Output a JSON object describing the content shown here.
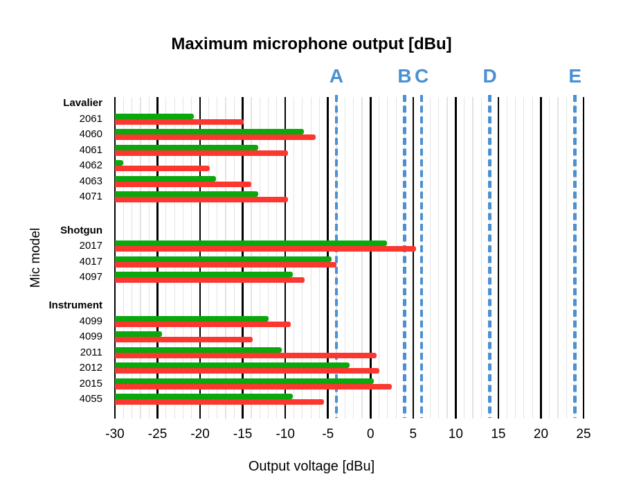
{
  "chart_data": {
    "type": "bar",
    "orientation": "horizontal",
    "title": "Maximum microphone output [dBu]",
    "xlabel": "Output voltage [dBu]",
    "ylabel": "Mic model",
    "xlim": [
      -30,
      25
    ],
    "x_ticks": [
      -30,
      -25,
      -20,
      -15,
      -10,
      -5,
      0,
      5,
      10,
      15,
      20,
      25
    ],
    "minor_grid_step": 1,
    "major_grid_step": 5,
    "grid": true,
    "legend": false,
    "background_color": "#ffffff",
    "series": [
      {
        "name": "green",
        "color": "#0aa80c"
      },
      {
        "name": "red",
        "color": "#fc3730"
      }
    ],
    "groups": [
      {
        "label": "Lavalier",
        "items": [
          {
            "label": "2061",
            "values": [
              -20.7,
              -14.9
            ]
          },
          {
            "label": "4060",
            "values": [
              -7.8,
              -6.4
            ]
          },
          {
            "label": "4061",
            "values": [
              -13.2,
              -9.7
            ]
          },
          {
            "label": "4062",
            "values": [
              -29.0,
              -18.9
            ]
          },
          {
            "label": "4063",
            "values": [
              -18.1,
              -14.0
            ]
          },
          {
            "label": "4071",
            "values": [
              -13.2,
              -9.7
            ]
          }
        ]
      },
      {
        "label": "Shotgun",
        "items": [
          {
            "label": "2017",
            "values": [
              1.9,
              5.3
            ]
          },
          {
            "label": "4017",
            "values": [
              -4.6,
              -4.0
            ]
          },
          {
            "label": "4097",
            "values": [
              -9.1,
              -7.7
            ]
          }
        ]
      },
      {
        "label": "Instrument",
        "items": [
          {
            "label": "4099",
            "values": [
              -12.0,
              -9.4
            ]
          },
          {
            "label": "4099",
            "values": [
              -24.5,
              -13.8
            ]
          },
          {
            "label": "2011",
            "values": [
              -10.4,
              0.7
            ]
          },
          {
            "label": "2012",
            "values": [
              -2.5,
              1.0
            ]
          },
          {
            "label": "2015",
            "values": [
              0.4,
              2.5
            ]
          },
          {
            "label": "4055",
            "values": [
              -9.1,
              -5.5
            ]
          }
        ]
      }
    ],
    "reference_lines": [
      {
        "label": "A",
        "value": -4,
        "color": "#4a90d2"
      },
      {
        "label": "B",
        "value": 4,
        "color": "#4a90d2"
      },
      {
        "label": "C",
        "value": 6,
        "color": "#4a90d2"
      },
      {
        "label": "D",
        "value": 14,
        "color": "#4a90d2"
      },
      {
        "label": "E",
        "value": 24,
        "color": "#4a90d2"
      }
    ]
  }
}
